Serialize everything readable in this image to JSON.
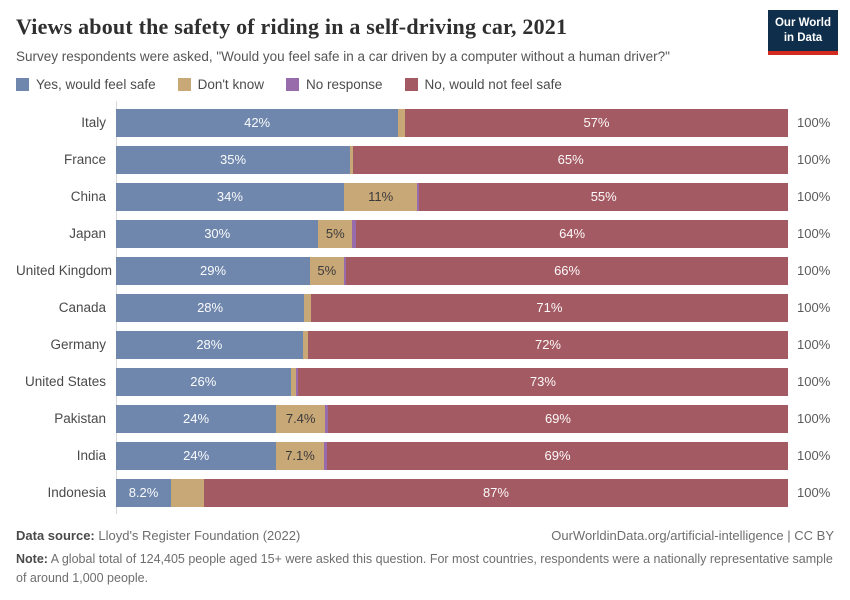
{
  "header": {
    "title": "Views about the safety of riding in a self-driving car, 2021",
    "subtitle": "Survey respondents were asked, \"Would you feel safe in a car driven by a computer without a human driver?\"",
    "logo": {
      "line1": "Our World",
      "line2": "in Data",
      "bg_color": "#0f2e4c",
      "stripe_color": "#d42b21"
    }
  },
  "chart_data": {
    "type": "bar",
    "variant": "stacked-horizontal",
    "title": "Views about the safety of riding in a self-driving car, 2021",
    "xlim": [
      0,
      100
    ],
    "grid": false,
    "legend_position": "top",
    "total_label": "100%",
    "categories": [
      "Italy",
      "France",
      "China",
      "Japan",
      "United Kingdom",
      "Canada",
      "Germany",
      "United States",
      "Pakistan",
      "India",
      "Indonesia"
    ],
    "series": [
      {
        "key": "yes-would-feel-safe",
        "name": "Yes, would feel safe",
        "color": "#6f87ac",
        "dark_label": false,
        "values": [
          42,
          35,
          34,
          30,
          29,
          28,
          28,
          26,
          24,
          24,
          8.2
        ],
        "labels": [
          "42%",
          "35%",
          "34%",
          "30%",
          "29%",
          "28%",
          "28%",
          "26%",
          "24%",
          "24%",
          "8.2%"
        ]
      },
      {
        "key": "dont-know",
        "name": "Don't know",
        "color": "#c9a878",
        "dark_label": true,
        "values": [
          1.0,
          0.5,
          11,
          5,
          5,
          1.0,
          0.8,
          0.8,
          7.4,
          7.1,
          4.9
        ],
        "labels": [
          "",
          "",
          "11%",
          "5%",
          "5%",
          "",
          "",
          "",
          "7.4%",
          "7.1%",
          ""
        ]
      },
      {
        "key": "no-response",
        "name": "No response",
        "color": "#986bab",
        "dark_label": true,
        "values": [
          0,
          0,
          0.3,
          0.6,
          0.4,
          0,
          0,
          0.3,
          0.4,
          0.5,
          0
        ],
        "labels": [
          "",
          "",
          "",
          "",
          "",
          "",
          "",
          "",
          "",
          "",
          ""
        ]
      },
      {
        "key": "no-would-not-feel-safe",
        "name": "No, would not feel safe",
        "color": "#a45a63",
        "dark_label": false,
        "values": [
          57,
          65,
          55,
          64,
          66,
          71,
          72,
          73,
          69,
          69,
          87
        ],
        "labels": [
          "57%",
          "65%",
          "55%",
          "64%",
          "66%",
          "71%",
          "72%",
          "73%",
          "69%",
          "69%",
          "87%"
        ]
      }
    ]
  },
  "footer": {
    "data_source_label": "Data source:",
    "data_source_value": " Lloyd's Register Foundation (2022)",
    "attribution": "OurWorldinData.org/artificial-intelligence | CC BY",
    "note_label": "Note:",
    "note_value": " A global total of 124,405 people aged 15+ were asked this question. For most countries, respondents were a nationally representative sample of around 1,000 people."
  }
}
